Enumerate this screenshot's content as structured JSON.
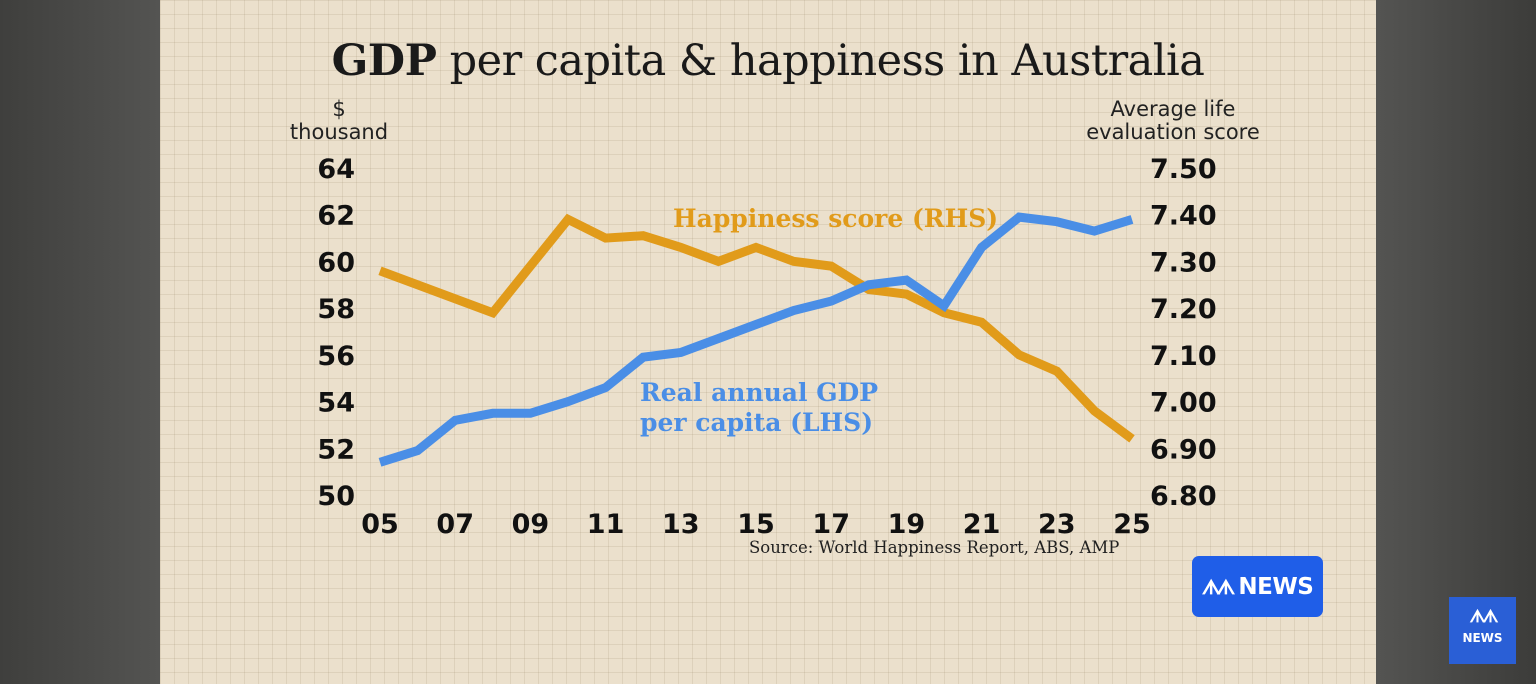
{
  "chart_data": {
    "type": "line",
    "title_bold": "GDP",
    "title_rest": "per capita & happiness in Australia",
    "y_left_label_line1": "$",
    "y_left_label_line2": "thousand",
    "y_right_label_line1": "Average life",
    "y_right_label_line2": "evaluation score",
    "y_left_ticks": [
      "64",
      "62",
      "60",
      "58",
      "56",
      "54",
      "52",
      "50"
    ],
    "y_right_ticks": [
      "7.50",
      "7.40",
      "7.30",
      "7.20",
      "7.10",
      "7.00",
      "6.90",
      "6.80"
    ],
    "x_ticks": [
      "05",
      "07",
      "09",
      "11",
      "13",
      "15",
      "17",
      "19",
      "21",
      "23",
      "25"
    ],
    "ylim_left": [
      50,
      64
    ],
    "ylim_right": [
      6.8,
      7.5
    ],
    "xlim": [
      2005,
      2025
    ],
    "grid": true,
    "series": [
      {
        "name": "Real annual GDP per capita (LHS)",
        "label_line1": "Real annual GDP",
        "label_line2": "per capita (LHS)",
        "axis": "left",
        "color": "#4a8ee6",
        "x": [
          2005,
          2006,
          2007,
          2008,
          2009,
          2010,
          2011,
          2012,
          2013,
          2014,
          2015,
          2016,
          2017,
          2018,
          2019,
          2020,
          2021,
          2022,
          2023,
          2024,
          2025
        ],
        "values": [
          51.4,
          51.9,
          53.2,
          53.5,
          53.5,
          54.0,
          54.6,
          55.9,
          56.1,
          56.7,
          57.3,
          57.9,
          58.3,
          59.0,
          59.2,
          58.1,
          60.6,
          61.9,
          61.7,
          61.3,
          61.8
        ]
      },
      {
        "name": "Happiness score (RHS)",
        "axis": "right",
        "color": "#e19b1a",
        "x": [
          2005,
          2006,
          2007,
          2008,
          2009,
          2010,
          2011,
          2012,
          2013,
          2014,
          2015,
          2016,
          2017,
          2018,
          2019,
          2020,
          2021,
          2022,
          2023,
          2024,
          2025
        ],
        "values": [
          7.28,
          7.25,
          7.22,
          7.19,
          7.29,
          7.39,
          7.35,
          7.355,
          7.33,
          7.3,
          7.33,
          7.3,
          7.29,
          7.24,
          7.23,
          7.19,
          7.17,
          7.1,
          7.065,
          6.98,
          6.92
        ]
      }
    ],
    "source": "Source: World Happiness Report, ABS, AMP"
  },
  "branding": {
    "logo_word": "NEWS",
    "logo_mark": "ᗑᗑ",
    "bug_word": "NEWS",
    "bug_mark": "ᗑᗑ",
    "logo_color": "#1f5ee8"
  }
}
